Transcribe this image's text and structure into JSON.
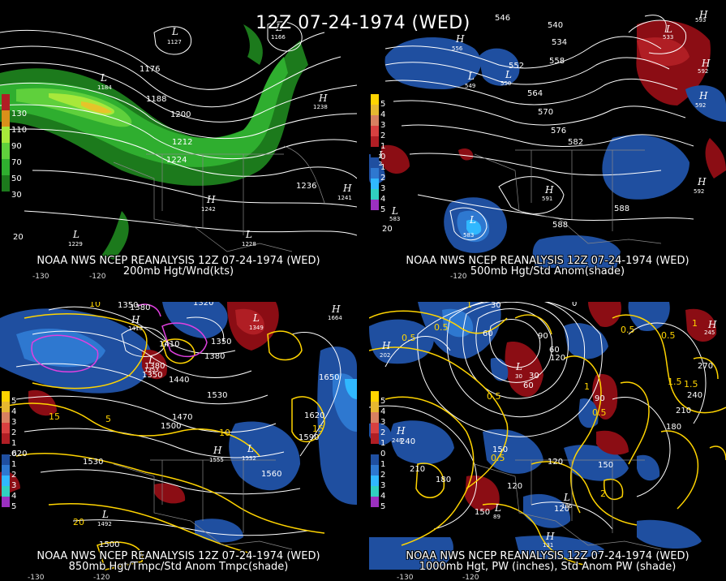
{
  "title": "12Z 07-24-1974 (WED)",
  "colors": {
    "wind": [
      "#1c7a1c",
      "#2fae2f",
      "#5fd03c",
      "#a8e83a",
      "#e6c42a"
    ],
    "anom_pos": [
      "#8b0d14",
      "#b01e24",
      "#d84040"
    ],
    "anom_neg": [
      "#1f4fa0",
      "#2e78d0",
      "#30b8ff"
    ],
    "contour": "#ffffff",
    "yellow_contour": "#ffd400",
    "magenta_contour": "#e040e0"
  },
  "panels": [
    {
      "id": "p200",
      "caption1": "NOAA NWS NCEP REANALYSIS 12Z 07-24-1974 (WED)",
      "caption2": "200mb Hgt/Wnd(kts)",
      "legend": [
        "130",
        "110",
        "90",
        "70",
        "50",
        "30"
      ],
      "labels": [
        "1176",
        "1188",
        "1200",
        "1212",
        "1224",
        "1236",
        "20"
      ],
      "ticks": [
        "-130",
        "-120"
      ],
      "centers": [
        {
          "sym": "L",
          "val": "1127"
        },
        {
          "sym": "L",
          "val": "1184"
        },
        {
          "sym": "L",
          "val": "1166"
        },
        {
          "sym": "H",
          "val": "1238"
        },
        {
          "sym": "H",
          "val": "1242"
        },
        {
          "sym": "H",
          "val": "1241"
        },
        {
          "sym": "L",
          "val": "1229"
        },
        {
          "sym": "L",
          "val": "1228"
        }
      ]
    },
    {
      "id": "p500",
      "caption1": "NOAA NWS NCEP REANALYSIS 12Z 07-24-1974 (WED)",
      "caption2": "500mb Hgt/Std Anom(shade)",
      "legend": [
        "5",
        "4",
        "3",
        "2",
        "1",
        "0",
        "1",
        "2",
        "3",
        "4",
        "5"
      ],
      "labels": [
        "546",
        "540",
        "534",
        "552",
        "558",
        "564",
        "570",
        "576",
        "582",
        "588",
        "588",
        "20"
      ],
      "ticks": [
        "-120"
      ],
      "centers": [
        {
          "sym": "L",
          "val": "533"
        },
        {
          "sym": "H",
          "val": "593"
        },
        {
          "sym": "H",
          "val": "556"
        },
        {
          "sym": "L",
          "val": "549"
        },
        {
          "sym": "L",
          "val": "550"
        },
        {
          "sym": "H",
          "val": "592"
        },
        {
          "sym": "H",
          "val": "592"
        },
        {
          "sym": "H",
          "val": "592"
        },
        {
          "sym": "H",
          "val": "592"
        },
        {
          "sym": "H",
          "val": "591"
        },
        {
          "sym": "L",
          "val": "583"
        },
        {
          "sym": "L",
          "val": "583"
        }
      ]
    },
    {
      "id": "p850",
      "caption1": "NOAA NWS NCEP REANALYSIS 12Z 07-24-1974 (WED)",
      "caption2": "850mb Hgt/Tmpc/Std Anom Tmpc(shade)",
      "legend": [
        "5",
        "4",
        "3",
        "2",
        "1",
        "0",
        "1",
        "2",
        "3",
        "4",
        "5"
      ],
      "labels": [
        "1350",
        "1380",
        "1320",
        "1410",
        "1350",
        "1380",
        "1350",
        "1440",
        "1380",
        "1470",
        "1530",
        "1650",
        "1500",
        "1620",
        "1590",
        "1530",
        "1560",
        "1500",
        "1620"
      ],
      "ytemps": [
        "10",
        "15",
        "10",
        "5",
        "15",
        "20"
      ],
      "ticks": [
        "-130",
        "-120"
      ],
      "centers": [
        {
          "sym": "H",
          "val": "1664"
        },
        {
          "sym": "L",
          "val": "1349"
        },
        {
          "sym": "H",
          "val": "1410"
        },
        {
          "sym": "L",
          "val": "1353"
        },
        {
          "sym": "H",
          "val": "1555"
        },
        {
          "sym": "L",
          "val": "1532"
        },
        {
          "sym": "L",
          "val": "1492"
        }
      ]
    },
    {
      "id": "p1000",
      "caption1": "NOAA NWS NCEP REANALYSIS 12Z 07-24-1974 (WED)",
      "caption2": "1000mb Hgt, PW (inches), Std Anom PW (shade)",
      "legend": [
        "5",
        "4",
        "3",
        "2",
        "1",
        "0",
        "1",
        "2",
        "3",
        "4",
        "5"
      ],
      "labels": [
        "30",
        "0",
        "60",
        "90",
        "120",
        "60",
        "30",
        "60",
        "90",
        "270",
        "240",
        "210",
        "180",
        "150",
        "120",
        "240",
        "210",
        "180",
        "150",
        "120",
        "150",
        "120"
      ],
      "ytemps": [
        "1",
        "0.5",
        "0.5",
        "0.5",
        "0.5",
        "1",
        "1.5",
        "0.5",
        "0.5",
        "1",
        "1.5",
        "2",
        "0.5"
      ],
      "ticks": [
        "-130",
        "-120"
      ],
      "centers": [
        {
          "sym": "H",
          "val": "202"
        },
        {
          "sym": "H",
          "val": "248"
        },
        {
          "sym": "L",
          "val": "30"
        },
        {
          "sym": "H",
          "val": "245"
        },
        {
          "sym": "L",
          "val": "89"
        },
        {
          "sym": "H",
          "val": "131"
        },
        {
          "sym": "L",
          "val": "106"
        }
      ]
    }
  ]
}
